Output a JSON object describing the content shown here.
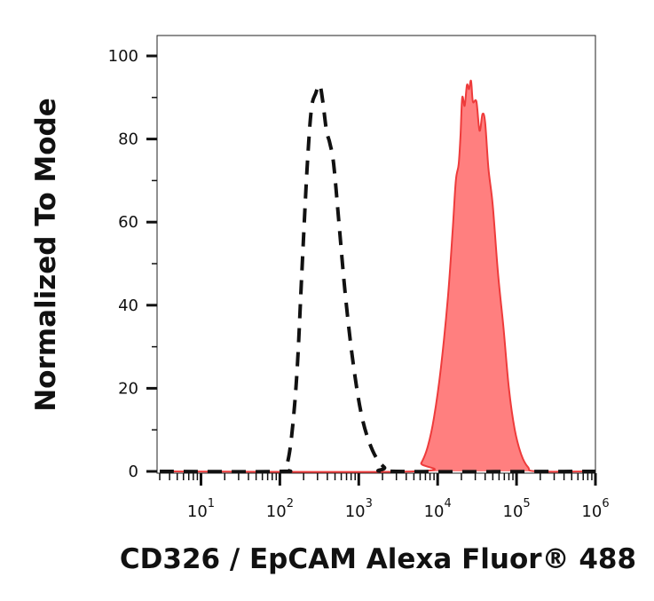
{
  "chart_data": {
    "type": "area",
    "title": "",
    "xlabel": "CD326 / EpCAM Alexa Fluor® 488",
    "ylabel": "Normalized To Mode",
    "xscale": "log",
    "xlim": [
      3,
      1000000
    ],
    "ylim": [
      0,
      105
    ],
    "grid": false,
    "legend": "none",
    "yticks": [
      "0",
      "20",
      "40",
      "60",
      "80",
      "100"
    ],
    "xticks": [
      {
        "base": "10",
        "exp": "1"
      },
      {
        "base": "10",
        "exp": "2"
      },
      {
        "base": "10",
        "exp": "3"
      },
      {
        "base": "10",
        "exp": "4"
      },
      {
        "base": "10",
        "exp": "5"
      },
      {
        "base": "10",
        "exp": "6"
      }
    ],
    "series": [
      {
        "style": "dashed-outline",
        "color": "#111111",
        "points": [
          [
            3,
            0
          ],
          [
            100,
            0
          ],
          [
            120,
            1
          ],
          [
            140,
            8
          ],
          [
            165,
            24
          ],
          [
            190,
            48
          ],
          [
            220,
            72
          ],
          [
            250,
            87
          ],
          [
            285,
            91
          ],
          [
            320,
            93
          ],
          [
            350,
            89
          ],
          [
            390,
            82
          ],
          [
            430,
            79
          ],
          [
            480,
            74
          ],
          [
            560,
            60
          ],
          [
            680,
            42
          ],
          [
            850,
            26
          ],
          [
            1100,
            13
          ],
          [
            1500,
            5
          ],
          [
            2100,
            1
          ],
          [
            3000,
            0
          ],
          [
            1000000,
            0
          ]
        ]
      },
      {
        "style": "filled",
        "color": "#ff7f7f",
        "stroke": "#ee3b3b",
        "gradient_start": "#f4a068",
        "points": [
          [
            3,
            0
          ],
          [
            5000,
            0
          ],
          [
            6200,
            2
          ],
          [
            7500,
            6
          ],
          [
            9000,
            13
          ],
          [
            11000,
            25
          ],
          [
            13500,
            42
          ],
          [
            15500,
            58
          ],
          [
            17000,
            70
          ],
          [
            18500,
            74
          ],
          [
            19500,
            81
          ],
          [
            20500,
            90
          ],
          [
            22000,
            88
          ],
          [
            23500,
            93
          ],
          [
            25000,
            92
          ],
          [
            26500,
            94
          ],
          [
            28000,
            89
          ],
          [
            31000,
            89
          ],
          [
            34000,
            82
          ],
          [
            37000,
            86
          ],
          [
            40000,
            84
          ],
          [
            44000,
            73
          ],
          [
            50000,
            64
          ],
          [
            58000,
            48
          ],
          [
            68000,
            35
          ],
          [
            80000,
            20
          ],
          [
            95000,
            10
          ],
          [
            115000,
            4
          ],
          [
            140000,
            1
          ],
          [
            180000,
            0
          ],
          [
            1000000,
            0
          ]
        ]
      }
    ]
  }
}
